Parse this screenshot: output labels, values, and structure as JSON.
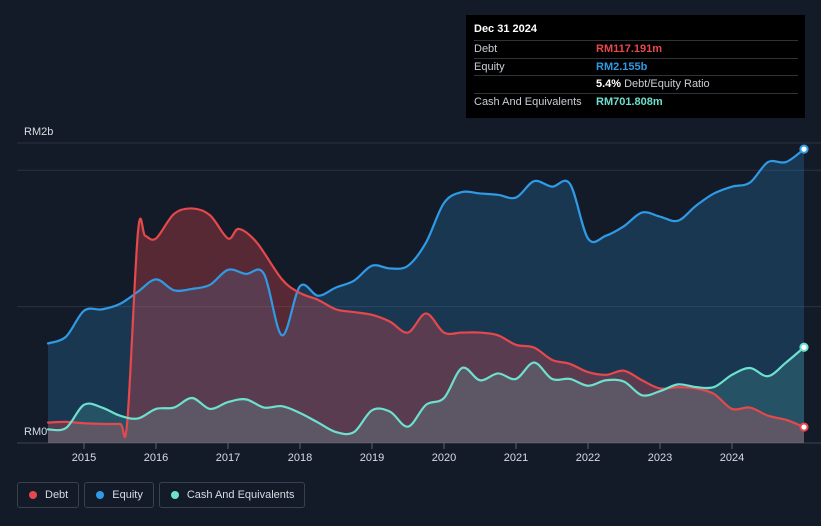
{
  "tooltip": {
    "date": "Dec 31 2024",
    "rows": [
      {
        "label": "Debt",
        "value": "RM117.191m",
        "color": "#e5484d"
      },
      {
        "label": "Equity",
        "value": "RM2.155b",
        "color": "#2f9ae5"
      },
      {
        "label": "",
        "value": "5.4%",
        "sub": "Debt/Equity Ratio",
        "color": "#ffffff"
      },
      {
        "label": "Cash And Equivalents",
        "value": "RM701.808m",
        "color": "#6ee0cf"
      }
    ]
  },
  "legend": [
    {
      "label": "Debt",
      "color": "#e5484d"
    },
    {
      "label": "Equity",
      "color": "#2f9ae5"
    },
    {
      "label": "Cash And Equivalents",
      "color": "#6ee0cf"
    }
  ],
  "chart_data": {
    "type": "area",
    "y_unit": "RM billions",
    "ylim": [
      0,
      2.2
    ],
    "y_ticks": [
      {
        "value": 2.0,
        "label": "RM2b"
      },
      {
        "value": 0,
        "label": "RM0"
      }
    ],
    "xlim": [
      2014.5,
      2025.0
    ],
    "x_ticks": [
      "2015",
      "2016",
      "2017",
      "2018",
      "2019",
      "2020",
      "2021",
      "2022",
      "2023",
      "2024"
    ],
    "grid": true,
    "series": [
      {
        "name": "Debt",
        "color": "#e5484d",
        "points": [
          [
            2014.5,
            0.15
          ],
          [
            2014.75,
            0.155
          ],
          [
            2015.0,
            0.145
          ],
          [
            2015.25,
            0.14
          ],
          [
            2015.5,
            0.14
          ],
          [
            2015.6,
            0.15
          ],
          [
            2015.75,
            1.55
          ],
          [
            2015.85,
            1.52
          ],
          [
            2016.0,
            1.5
          ],
          [
            2016.25,
            1.68
          ],
          [
            2016.5,
            1.72
          ],
          [
            2016.75,
            1.67
          ],
          [
            2017.0,
            1.5
          ],
          [
            2017.15,
            1.57
          ],
          [
            2017.4,
            1.47
          ],
          [
            2017.75,
            1.2
          ],
          [
            2018.0,
            1.1
          ],
          [
            2018.25,
            1.05
          ],
          [
            2018.5,
            0.98
          ],
          [
            2018.75,
            0.96
          ],
          [
            2019.0,
            0.94
          ],
          [
            2019.25,
            0.89
          ],
          [
            2019.5,
            0.81
          ],
          [
            2019.75,
            0.95
          ],
          [
            2020.0,
            0.81
          ],
          [
            2020.25,
            0.81
          ],
          [
            2020.5,
            0.81
          ],
          [
            2020.75,
            0.79
          ],
          [
            2021.0,
            0.72
          ],
          [
            2021.25,
            0.7
          ],
          [
            2021.5,
            0.61
          ],
          [
            2021.75,
            0.58
          ],
          [
            2022.0,
            0.52
          ],
          [
            2022.25,
            0.5
          ],
          [
            2022.5,
            0.53
          ],
          [
            2022.75,
            0.46
          ],
          [
            2023.0,
            0.4
          ],
          [
            2023.25,
            0.41
          ],
          [
            2023.5,
            0.4
          ],
          [
            2023.75,
            0.36
          ],
          [
            2024.0,
            0.25
          ],
          [
            2024.25,
            0.26
          ],
          [
            2024.5,
            0.2
          ],
          [
            2024.75,
            0.17
          ],
          [
            2025.0,
            0.117
          ]
        ]
      },
      {
        "name": "Equity",
        "color": "#2f9ae5",
        "points": [
          [
            2014.5,
            0.73
          ],
          [
            2014.75,
            0.78
          ],
          [
            2015.0,
            0.97
          ],
          [
            2015.25,
            0.98
          ],
          [
            2015.5,
            1.02
          ],
          [
            2015.75,
            1.11
          ],
          [
            2016.0,
            1.2
          ],
          [
            2016.25,
            1.12
          ],
          [
            2016.5,
            1.13
          ],
          [
            2016.75,
            1.16
          ],
          [
            2017.0,
            1.27
          ],
          [
            2017.25,
            1.24
          ],
          [
            2017.5,
            1.24
          ],
          [
            2017.75,
            0.79
          ],
          [
            2018.0,
            1.15
          ],
          [
            2018.25,
            1.08
          ],
          [
            2018.5,
            1.14
          ],
          [
            2018.75,
            1.19
          ],
          [
            2019.0,
            1.3
          ],
          [
            2019.25,
            1.28
          ],
          [
            2019.5,
            1.3
          ],
          [
            2019.75,
            1.47
          ],
          [
            2020.0,
            1.76
          ],
          [
            2020.25,
            1.84
          ],
          [
            2020.5,
            1.83
          ],
          [
            2020.75,
            1.82
          ],
          [
            2021.0,
            1.8
          ],
          [
            2021.25,
            1.92
          ],
          [
            2021.5,
            1.88
          ],
          [
            2021.75,
            1.9
          ],
          [
            2022.0,
            1.5
          ],
          [
            2022.25,
            1.52
          ],
          [
            2022.5,
            1.59
          ],
          [
            2022.75,
            1.69
          ],
          [
            2023.0,
            1.66
          ],
          [
            2023.25,
            1.63
          ],
          [
            2023.5,
            1.74
          ],
          [
            2023.75,
            1.83
          ],
          [
            2024.0,
            1.88
          ],
          [
            2024.25,
            1.91
          ],
          [
            2024.5,
            2.06
          ],
          [
            2024.75,
            2.06
          ],
          [
            2025.0,
            2.155
          ]
        ]
      },
      {
        "name": "Cash And Equivalents",
        "color": "#6ee0cf",
        "points": [
          [
            2014.5,
            0.1
          ],
          [
            2014.75,
            0.11
          ],
          [
            2015.0,
            0.28
          ],
          [
            2015.25,
            0.26
          ],
          [
            2015.5,
            0.2
          ],
          [
            2015.75,
            0.18
          ],
          [
            2016.0,
            0.25
          ],
          [
            2016.25,
            0.26
          ],
          [
            2016.5,
            0.33
          ],
          [
            2016.75,
            0.25
          ],
          [
            2017.0,
            0.3
          ],
          [
            2017.25,
            0.32
          ],
          [
            2017.5,
            0.26
          ],
          [
            2017.75,
            0.27
          ],
          [
            2018.0,
            0.22
          ],
          [
            2018.25,
            0.15
          ],
          [
            2018.5,
            0.08
          ],
          [
            2018.75,
            0.08
          ],
          [
            2019.0,
            0.24
          ],
          [
            2019.25,
            0.23
          ],
          [
            2019.5,
            0.12
          ],
          [
            2019.75,
            0.28
          ],
          [
            2020.0,
            0.33
          ],
          [
            2020.25,
            0.55
          ],
          [
            2020.5,
            0.46
          ],
          [
            2020.75,
            0.51
          ],
          [
            2021.0,
            0.47
          ],
          [
            2021.25,
            0.59
          ],
          [
            2021.5,
            0.47
          ],
          [
            2021.75,
            0.47
          ],
          [
            2022.0,
            0.42
          ],
          [
            2022.25,
            0.46
          ],
          [
            2022.5,
            0.45
          ],
          [
            2022.75,
            0.35
          ],
          [
            2023.0,
            0.38
          ],
          [
            2023.25,
            0.43
          ],
          [
            2023.5,
            0.41
          ],
          [
            2023.75,
            0.41
          ],
          [
            2024.0,
            0.5
          ],
          [
            2024.25,
            0.55
          ],
          [
            2024.5,
            0.49
          ],
          [
            2024.75,
            0.59
          ],
          [
            2025.0,
            0.702
          ]
        ]
      }
    ]
  }
}
